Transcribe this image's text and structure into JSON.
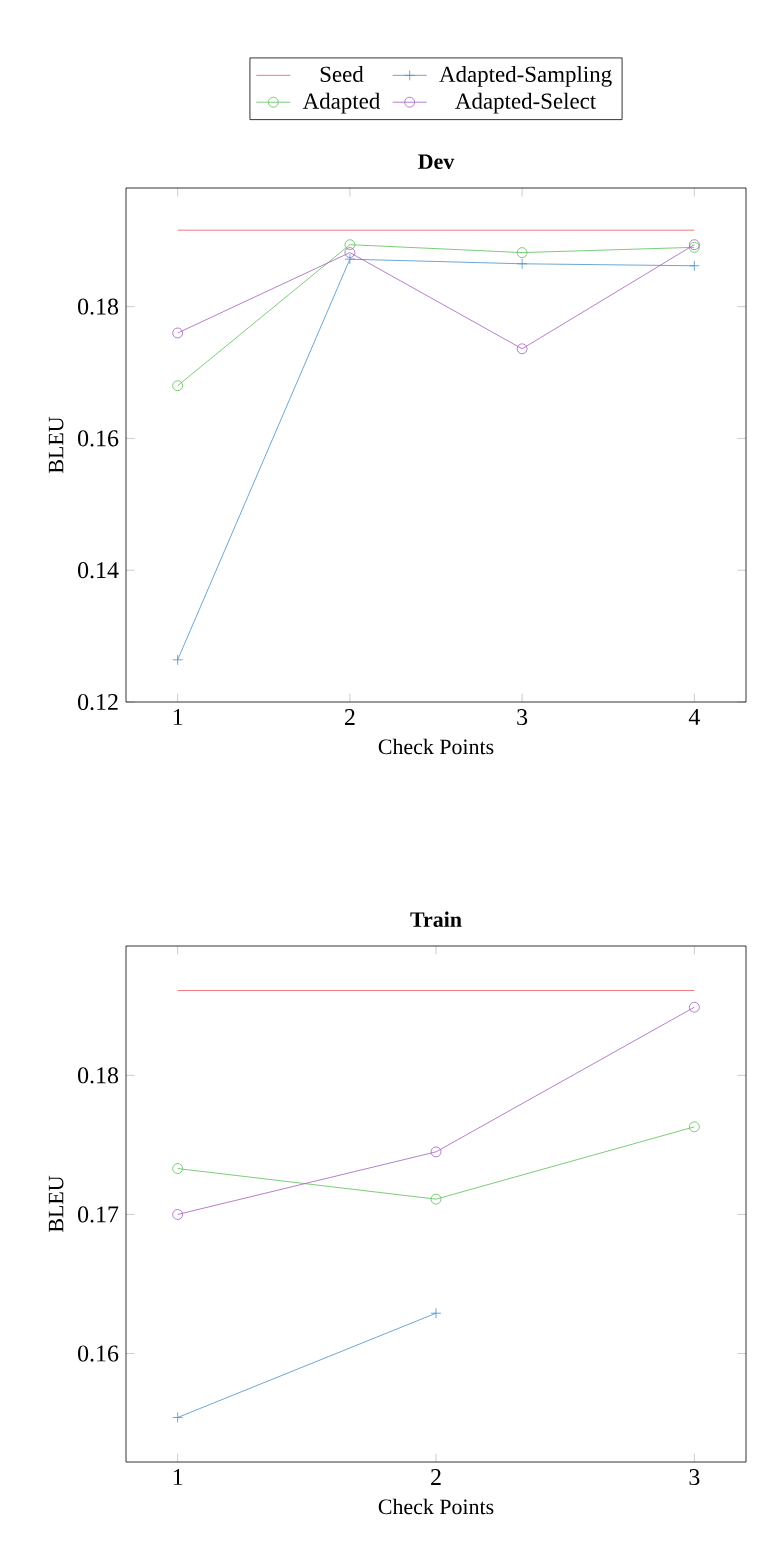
{
  "chart_data": [
    {
      "type": "line",
      "title": "Dev",
      "xlabel": "Check Points",
      "ylabel": "BLEU",
      "x": [
        1,
        2,
        3,
        4
      ],
      "xlim": [
        0.7,
        4.3
      ],
      "ylim": [
        0.12,
        0.198
      ],
      "xticks": [
        1,
        2,
        3,
        4
      ],
      "yticks": [
        0.12,
        0.14,
        0.16,
        0.18
      ],
      "legend": "top",
      "grid": false,
      "series": [
        {
          "name": "Seed",
          "color": "#e8585f",
          "marker": "none",
          "values": [
            0.1916,
            0.1916,
            0.1916,
            0.1916
          ]
        },
        {
          "name": "Adapted-Sampling",
          "color": "#4a90c8",
          "marker": "cross",
          "values": [
            0.1264,
            0.1872,
            0.1865,
            0.1862
          ]
        },
        {
          "name": "Adapted",
          "color": "#5cbf5c",
          "marker": "circle",
          "values": [
            0.168,
            0.1894,
            0.1882,
            0.189
          ]
        },
        {
          "name": "Adapted-Select",
          "color": "#a35fc0",
          "marker": "circle",
          "values": [
            0.176,
            0.1882,
            0.1736,
            0.1894
          ]
        }
      ]
    },
    {
      "type": "line",
      "title": "Train",
      "xlabel": "Check Points",
      "ylabel": "BLEU",
      "x": [
        1,
        2,
        3
      ],
      "xlim": [
        0.8,
        3.2
      ],
      "ylim": [
        0.1522,
        0.1893
      ],
      "xticks": [
        1,
        2,
        3
      ],
      "yticks": [
        0.16,
        0.17,
        0.18
      ],
      "legend": false,
      "grid": false,
      "series": [
        {
          "color": "#e8585f",
          "marker": "none",
          "values": [
            0.1861,
            0.1861,
            0.1861
          ]
        },
        {
          "color": "#4a90c8",
          "marker": "cross",
          "values": [
            0.1554,
            0.1629,
            null
          ]
        },
        {
          "color": "#5cbf5c",
          "marker": "circle",
          "values": [
            0.1733,
            0.1711,
            0.1763
          ]
        },
        {
          "color": "#a35fc0",
          "marker": "circle",
          "values": [
            0.17,
            0.1745,
            0.1849
          ]
        }
      ]
    }
  ]
}
